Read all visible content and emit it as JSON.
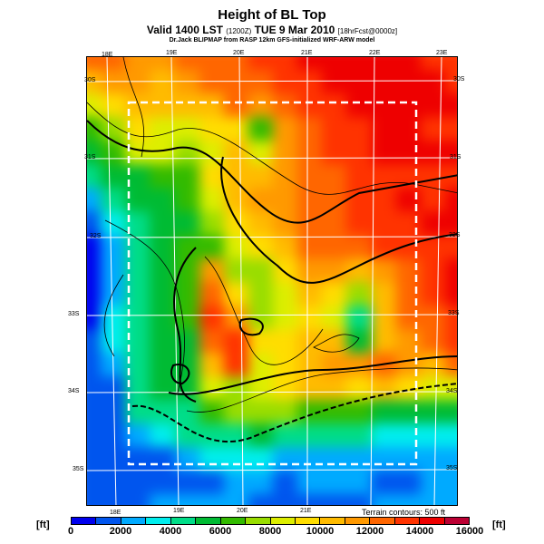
{
  "header": {
    "title": "Height of BL Top",
    "subtitle_main": "Valid 1400 LST ",
    "subtitle_z": "(1200Z)",
    "subtitle_date": " TUE 9 Mar 2010 ",
    "subtitle_fcst": "[18hrFcst@0000z]",
    "model": "Dr.Jack BLIPMAP from RASP 12km GFS-initialized WRF-ARW model"
  },
  "map": {
    "top_lon_labels": [
      "18E",
      "19E",
      "20E",
      "21E",
      "22E",
      "23E"
    ],
    "bottom_lon_labels": [
      "18E",
      "19E",
      "20E",
      "21E"
    ],
    "left_lat_labels": [
      "30S",
      "31S",
      "32S",
      "33S",
      "34S",
      "35S"
    ],
    "right_lat_labels": [
      "30S",
      "31S",
      "32S",
      "33S",
      "34S",
      "35S"
    ],
    "terrain_note": "Terrain contours: 500 ft",
    "field_levels": [
      [
        12,
        12,
        11,
        11,
        12,
        12,
        12,
        13,
        13,
        14,
        14,
        14,
        14,
        14,
        13,
        13
      ],
      [
        10,
        11,
        11,
        10,
        11,
        12,
        12,
        12,
        13,
        13,
        14,
        14,
        14,
        14,
        14,
        13
      ],
      [
        8,
        9,
        10,
        10,
        10,
        10,
        12,
        11,
        12,
        13,
        13,
        14,
        14,
        14,
        14,
        14
      ],
      [
        6,
        7,
        9,
        8,
        8,
        9,
        9,
        6,
        11,
        12,
        13,
        13,
        14,
        14,
        13,
        13
      ],
      [
        5,
        6,
        8,
        8,
        7,
        8,
        10,
        8,
        11,
        12,
        13,
        13,
        14,
        14,
        14,
        14
      ],
      [
        4,
        5,
        5,
        6,
        6,
        9,
        10,
        10,
        11,
        12,
        12,
        13,
        13,
        13,
        13,
        13
      ],
      [
        2,
        4,
        5,
        5,
        6,
        8,
        10,
        11,
        11,
        12,
        12,
        13,
        13,
        14,
        13,
        14
      ],
      [
        1,
        3,
        4,
        5,
        5,
        7,
        9,
        10,
        11,
        12,
        12,
        13,
        13,
        13,
        14,
        14
      ],
      [
        0,
        2,
        4,
        5,
        6,
        6,
        8,
        9,
        10,
        12,
        12,
        12,
        13,
        13,
        13,
        13
      ],
      [
        0,
        2,
        4,
        5,
        6,
        11,
        7,
        7,
        9,
        11,
        11,
        10,
        11,
        12,
        13,
        14
      ],
      [
        0,
        2,
        4,
        5,
        6,
        12,
        9,
        7,
        8,
        10,
        9,
        7,
        10,
        12,
        13,
        14
      ],
      [
        0,
        3,
        4,
        5,
        6,
        13,
        11,
        7,
        8,
        9,
        8,
        4,
        10,
        12,
        12,
        13
      ],
      [
        1,
        3,
        4,
        5,
        5,
        12,
        13,
        9,
        9,
        10,
        10,
        5,
        10,
        11,
        12,
        13
      ],
      [
        1,
        2,
        4,
        5,
        5,
        10,
        13,
        8,
        9,
        10,
        11,
        11,
        12,
        11,
        10,
        12
      ],
      [
        1,
        1,
        4,
        5,
        5,
        8,
        7,
        8,
        9,
        10,
        10,
        9,
        10,
        9,
        8,
        8
      ],
      [
        1,
        1,
        4,
        4,
        4,
        6,
        7,
        7,
        7,
        6,
        6,
        6,
        5,
        5,
        5,
        5
      ],
      [
        1,
        1,
        2,
        3,
        4,
        4,
        4,
        5,
        4,
        4,
        4,
        4,
        3,
        3,
        3,
        3
      ],
      [
        1,
        1,
        1,
        1,
        2,
        3,
        3,
        3,
        2,
        2,
        2,
        2,
        2,
        2,
        2,
        2
      ],
      [
        1,
        1,
        1,
        1,
        1,
        1,
        2,
        2,
        1,
        2,
        2,
        2,
        1,
        1,
        2,
        2
      ],
      [
        1,
        1,
        1,
        2,
        2,
        2,
        2,
        1,
        1,
        1,
        1,
        1,
        2,
        2,
        2,
        2
      ]
    ]
  },
  "colorbar": {
    "unit": "[ft]",
    "min": 0,
    "max": 16000,
    "step": 1000,
    "tick_labels": [
      "0",
      "2000",
      "4000",
      "6000",
      "8000",
      "10000",
      "12000",
      "14000",
      "16000"
    ],
    "colors": [
      "#0000ee",
      "#0055ee",
      "#00aaff",
      "#00eeee",
      "#00dd88",
      "#00bb33",
      "#33bb00",
      "#99dd00",
      "#ddee00",
      "#ffdd00",
      "#ffbb00",
      "#ff9900",
      "#ff6600",
      "#ff3300",
      "#ee0000",
      "#bb0033"
    ]
  }
}
